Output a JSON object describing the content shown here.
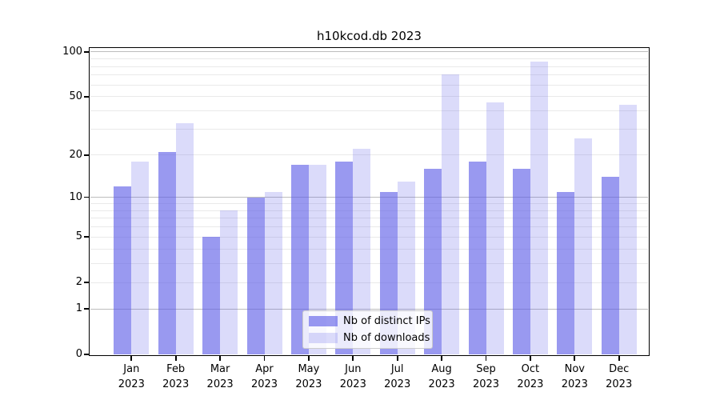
{
  "chart_data": {
    "type": "bar",
    "title": "h10kcod.db 2023",
    "categories": [
      "Jan",
      "Feb",
      "Mar",
      "Apr",
      "May",
      "Jun",
      "Jul",
      "Aug",
      "Sep",
      "Oct",
      "Nov",
      "Dec"
    ],
    "x_tick_second_line": "2023",
    "series": [
      {
        "name": "Nb of distinct IPs",
        "color": "rgba(90,90,230,0.62)",
        "values": [
          12,
          21,
          5,
          10,
          17,
          18,
          11,
          16,
          18,
          16,
          11,
          14
        ]
      },
      {
        "name": "Nb of downloads",
        "color": "rgba(90,90,230,0.22)",
        "values": [
          18,
          33,
          8,
          11,
          17,
          22,
          13,
          71,
          46,
          86,
          26,
          44
        ]
      }
    ],
    "xlabel": "",
    "ylabel": "",
    "yticks": [
      0,
      1,
      2,
      5,
      10,
      20,
      50,
      100
    ],
    "ylim": [
      0,
      105
    ],
    "yscale": "log1p",
    "grid": true,
    "legend_position": "lower center"
  },
  "colors": {
    "background": "#ffffff",
    "text": "#000000",
    "spine": "#000000",
    "grid_major": "#bdbdbd",
    "grid_minor": "#e9e9e9",
    "bar_distinct_ips": "rgba(90,90,230,0.62)",
    "bar_downloads": "rgba(90,90,230,0.22)"
  }
}
